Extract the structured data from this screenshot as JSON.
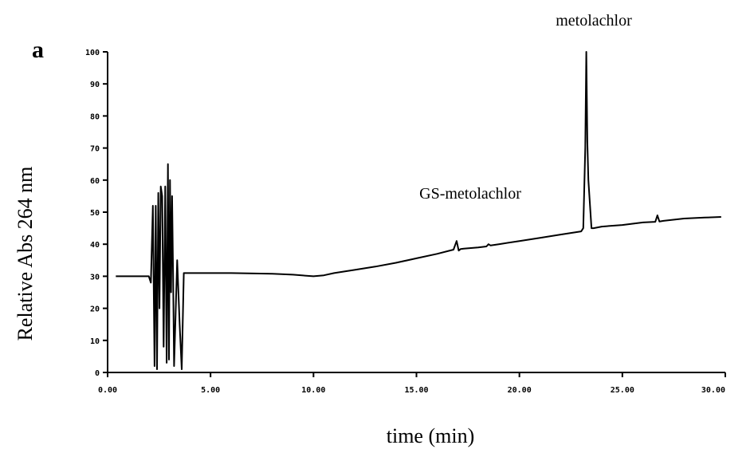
{
  "chart_data": {
    "type": "line",
    "panel_label": "a",
    "xlabel": "time (min)",
    "ylabel": "Relative Abs 264 nm",
    "xlim": [
      0,
      30
    ],
    "ylim": [
      0,
      100
    ],
    "x_ticks": [
      0,
      5,
      10,
      15,
      20,
      25,
      30
    ],
    "x_tick_labels": [
      "0.00",
      "5.00",
      "10.00",
      "15.00",
      "20.00",
      "25.00",
      "30.00"
    ],
    "y_ticks": [
      0,
      10,
      20,
      30,
      40,
      50,
      60,
      70,
      80,
      90,
      100
    ],
    "y_tick_labels": [
      "0",
      "10",
      "20",
      "30",
      "40",
      "50",
      "60",
      "70",
      "80",
      "90",
      "100"
    ],
    "grid": false,
    "annotations": [
      {
        "text": "metolachlor",
        "x": 23.3,
        "y": 100
      },
      {
        "text": "GS-metolachlor",
        "x": 17.1,
        "y": 41
      }
    ],
    "series": [
      {
        "x": [
          0.4,
          2.0,
          2.1,
          2.2,
          2.28,
          2.34,
          2.4,
          2.46,
          2.52,
          2.58,
          2.65,
          2.72,
          2.8,
          2.87,
          2.93,
          2.98,
          3.03,
          3.08,
          3.13,
          3.18,
          3.23,
          3.3,
          3.38,
          3.5,
          3.6,
          3.7,
          4.5,
          6.0,
          8.0,
          9.0,
          10.0,
          10.5,
          11.0,
          12.0,
          13.0,
          14.0,
          15.0,
          16.0,
          16.8,
          16.95,
          17.05,
          17.15,
          17.3,
          18.0,
          18.4,
          18.5,
          18.6,
          19.0,
          20.0,
          21.0,
          22.0,
          23.0,
          23.1,
          23.2,
          23.25,
          23.3,
          23.35,
          23.4,
          23.45,
          23.5,
          23.6,
          24.0,
          25.0,
          26.0,
          26.6,
          26.7,
          26.8,
          27.0,
          28.0,
          29.0,
          29.8
        ],
        "y": [
          30,
          30,
          28,
          52,
          2,
          52,
          1,
          56,
          20,
          58,
          55,
          8,
          58,
          3,
          65,
          4,
          60,
          25,
          55,
          30,
          2,
          18,
          35,
          15,
          1,
          31,
          31,
          31,
          30.8,
          30.5,
          30,
          30.3,
          31,
          32,
          33,
          34.2,
          35.6,
          37,
          38.3,
          41,
          38,
          38.5,
          38.6,
          39,
          39.3,
          40,
          39.6,
          40,
          41,
          42,
          43,
          44,
          45,
          70,
          100,
          72,
          60,
          55,
          50,
          45,
          45,
          45.5,
          46,
          46.8,
          47,
          49,
          47.1,
          47.3,
          48,
          48.3,
          48.5
        ]
      }
    ]
  }
}
